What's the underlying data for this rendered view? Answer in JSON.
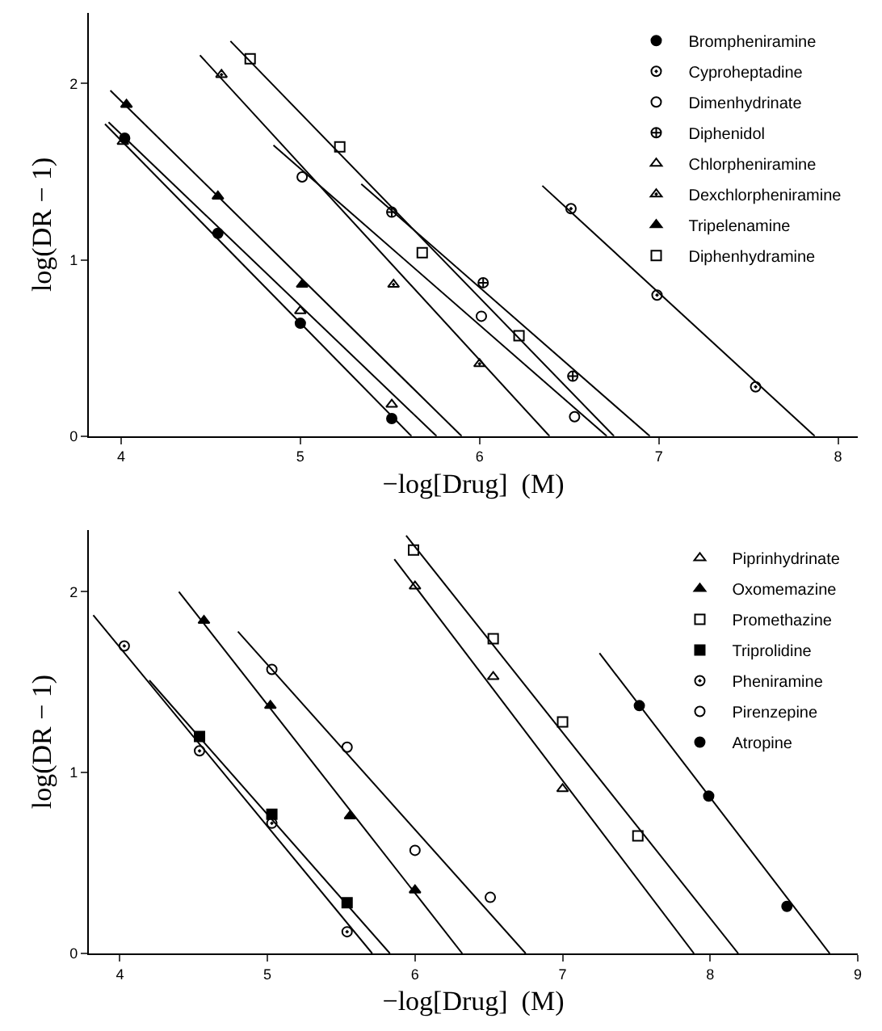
{
  "chart_data": [
    {
      "type": "scatter",
      "xlabel": "−log[Drug]  (M)",
      "ylabel": "log(DR − 1)",
      "xlim": [
        3.82,
        8.11
      ],
      "ylim": [
        0,
        2.4
      ],
      "xticks": [
        4,
        5,
        6,
        7,
        8
      ],
      "yticks": [
        0,
        1,
        2
      ],
      "grid": false,
      "legend": "top right",
      "series": [
        {
          "name": "Brompheniramine",
          "color": "#000000",
          "marker": "circle",
          "x": [
            4.02,
            4.54,
            5.0,
            5.51
          ],
          "values": [
            1.69,
            1.15,
            0.64,
            0.1
          ]
        },
        {
          "name": "Cyproheptadine",
          "color": "#000000",
          "marker": "circle-open-dot",
          "x": [
            6.51,
            6.99,
            7.54
          ],
          "values": [
            1.29,
            0.8,
            0.28
          ]
        },
        {
          "name": "Dimenhydrinate",
          "color": "#000000",
          "marker": "circle-open",
          "x": [
            5.01,
            6.01,
            6.53
          ],
          "values": [
            1.47,
            0.68,
            0.11
          ]
        },
        {
          "name": "Diphenidol",
          "color": "#000000",
          "marker": "cross",
          "x": [
            5.51,
            6.02,
            6.52
          ],
          "values": [
            1.27,
            0.87,
            0.34
          ]
        },
        {
          "name": "Chlorpheniramine",
          "color": "#000000",
          "marker": "triangle-up-open",
          "x": [
            4.01,
            5.0,
            5.51
          ],
          "values": [
            1.67,
            0.71,
            0.18
          ]
        },
        {
          "name": "Dexchlorpheniramine",
          "color": "#000000",
          "marker": "triangle-up-open-dot",
          "x": [
            4.56,
            5.52,
            6.0
          ],
          "values": [
            2.05,
            0.86,
            0.41
          ]
        },
        {
          "name": "Tripelenamine",
          "color": "#000000",
          "marker": "triangle-up",
          "x": [
            4.03,
            4.54,
            5.01
          ],
          "values": [
            1.88,
            1.36,
            0.86
          ]
        },
        {
          "name": "Diphenhydramine",
          "color": "#000000",
          "marker": "square-open",
          "x": [
            4.72,
            5.22,
            5.68,
            6.22
          ],
          "values": [
            2.14,
            1.64,
            1.04,
            0.57
          ]
        },
        {
          "type": "line",
          "color": "#000000",
          "x": [
            3.91,
            5.62
          ],
          "values": [
            1.77,
            0
          ]
        },
        {
          "type": "line",
          "color": "#000000",
          "x": [
            3.93,
            5.76
          ],
          "values": [
            1.78,
            0
          ]
        },
        {
          "type": "line",
          "color": "#000000",
          "x": [
            3.94,
            5.9
          ],
          "values": [
            1.96,
            0
          ]
        },
        {
          "type": "line",
          "color": "#000000",
          "x": [
            4.44,
            6.39
          ],
          "values": [
            2.16,
            0
          ]
        },
        {
          "type": "line",
          "color": "#000000",
          "x": [
            4.85,
            6.71
          ],
          "values": [
            1.65,
            0
          ]
        },
        {
          "type": "line",
          "color": "#000000",
          "x": [
            4.61,
            6.75
          ],
          "values": [
            2.24,
            0
          ]
        },
        {
          "type": "line",
          "color": "#000000",
          "x": [
            5.34,
            6.95
          ],
          "values": [
            1.43,
            0
          ]
        },
        {
          "type": "line",
          "color": "#000000",
          "x": [
            6.35,
            7.87
          ],
          "values": [
            1.42,
            0
          ]
        }
      ]
    },
    {
      "type": "scatter",
      "xlabel": "−log[Drug]  (M)",
      "ylabel": "log(DR − 1)",
      "xlim": [
        3.79,
        9.0
      ],
      "ylim": [
        0,
        2.34
      ],
      "xticks": [
        4,
        5,
        6,
        7,
        8,
        9
      ],
      "yticks": [
        0,
        1,
        2
      ],
      "grid": false,
      "legend": "top right",
      "series": [
        {
          "name": "Piprinhydrinate",
          "color": "#000000",
          "marker": "triangle-up-open",
          "x": [
            6.0,
            6.53,
            7.0
          ],
          "values": [
            2.03,
            1.53,
            0.91
          ]
        },
        {
          "name": "Oxomemazine",
          "color": "#000000",
          "marker": "triangle-up",
          "x": [
            4.57,
            5.02,
            5.56,
            6.0
          ],
          "values": [
            1.84,
            1.37,
            0.76,
            0.35
          ]
        },
        {
          "name": "Promethazine",
          "color": "#000000",
          "marker": "square-open",
          "x": [
            5.99,
            6.53,
            7.0,
            7.51
          ],
          "values": [
            2.23,
            1.74,
            1.28,
            0.65
          ]
        },
        {
          "name": "Triprolidine",
          "color": "#000000",
          "marker": "square",
          "x": [
            4.54,
            5.03,
            5.54
          ],
          "values": [
            1.2,
            0.77,
            0.28
          ]
        },
        {
          "name": "Pheniramine",
          "color": "#000000",
          "marker": "circle-open-dot",
          "x": [
            4.03,
            4.54,
            5.03,
            5.54
          ],
          "values": [
            1.7,
            1.12,
            0.72,
            0.12
          ]
        },
        {
          "name": "Pirenzepine",
          "color": "#000000",
          "marker": "circle-open",
          "x": [
            5.03,
            5.54,
            6.0,
            6.51
          ],
          "values": [
            1.57,
            1.14,
            0.57,
            0.31
          ]
        },
        {
          "name": "Atropine",
          "color": "#000000",
          "marker": "circle",
          "x": [
            7.52,
            7.99,
            8.52
          ],
          "values": [
            1.37,
            0.87,
            0.26
          ]
        },
        {
          "type": "line",
          "color": "#000000",
          "x": [
            3.82,
            5.71
          ],
          "values": [
            1.87,
            0
          ]
        },
        {
          "type": "line",
          "color": "#000000",
          "x": [
            4.2,
            5.83
          ],
          "values": [
            1.51,
            0
          ]
        },
        {
          "type": "line",
          "color": "#000000",
          "x": [
            4.4,
            6.32
          ],
          "values": [
            2.0,
            0
          ]
        },
        {
          "type": "line",
          "color": "#000000",
          "x": [
            4.8,
            6.75
          ],
          "values": [
            1.78,
            0
          ]
        },
        {
          "type": "line",
          "color": "#000000",
          "x": [
            5.86,
            7.89
          ],
          "values": [
            2.18,
            0
          ]
        },
        {
          "type": "line",
          "color": "#000000",
          "x": [
            5.94,
            8.19
          ],
          "values": [
            2.31,
            0
          ]
        },
        {
          "type": "line",
          "color": "#000000",
          "x": [
            7.25,
            8.81
          ],
          "values": [
            1.66,
            0
          ]
        }
      ]
    }
  ]
}
